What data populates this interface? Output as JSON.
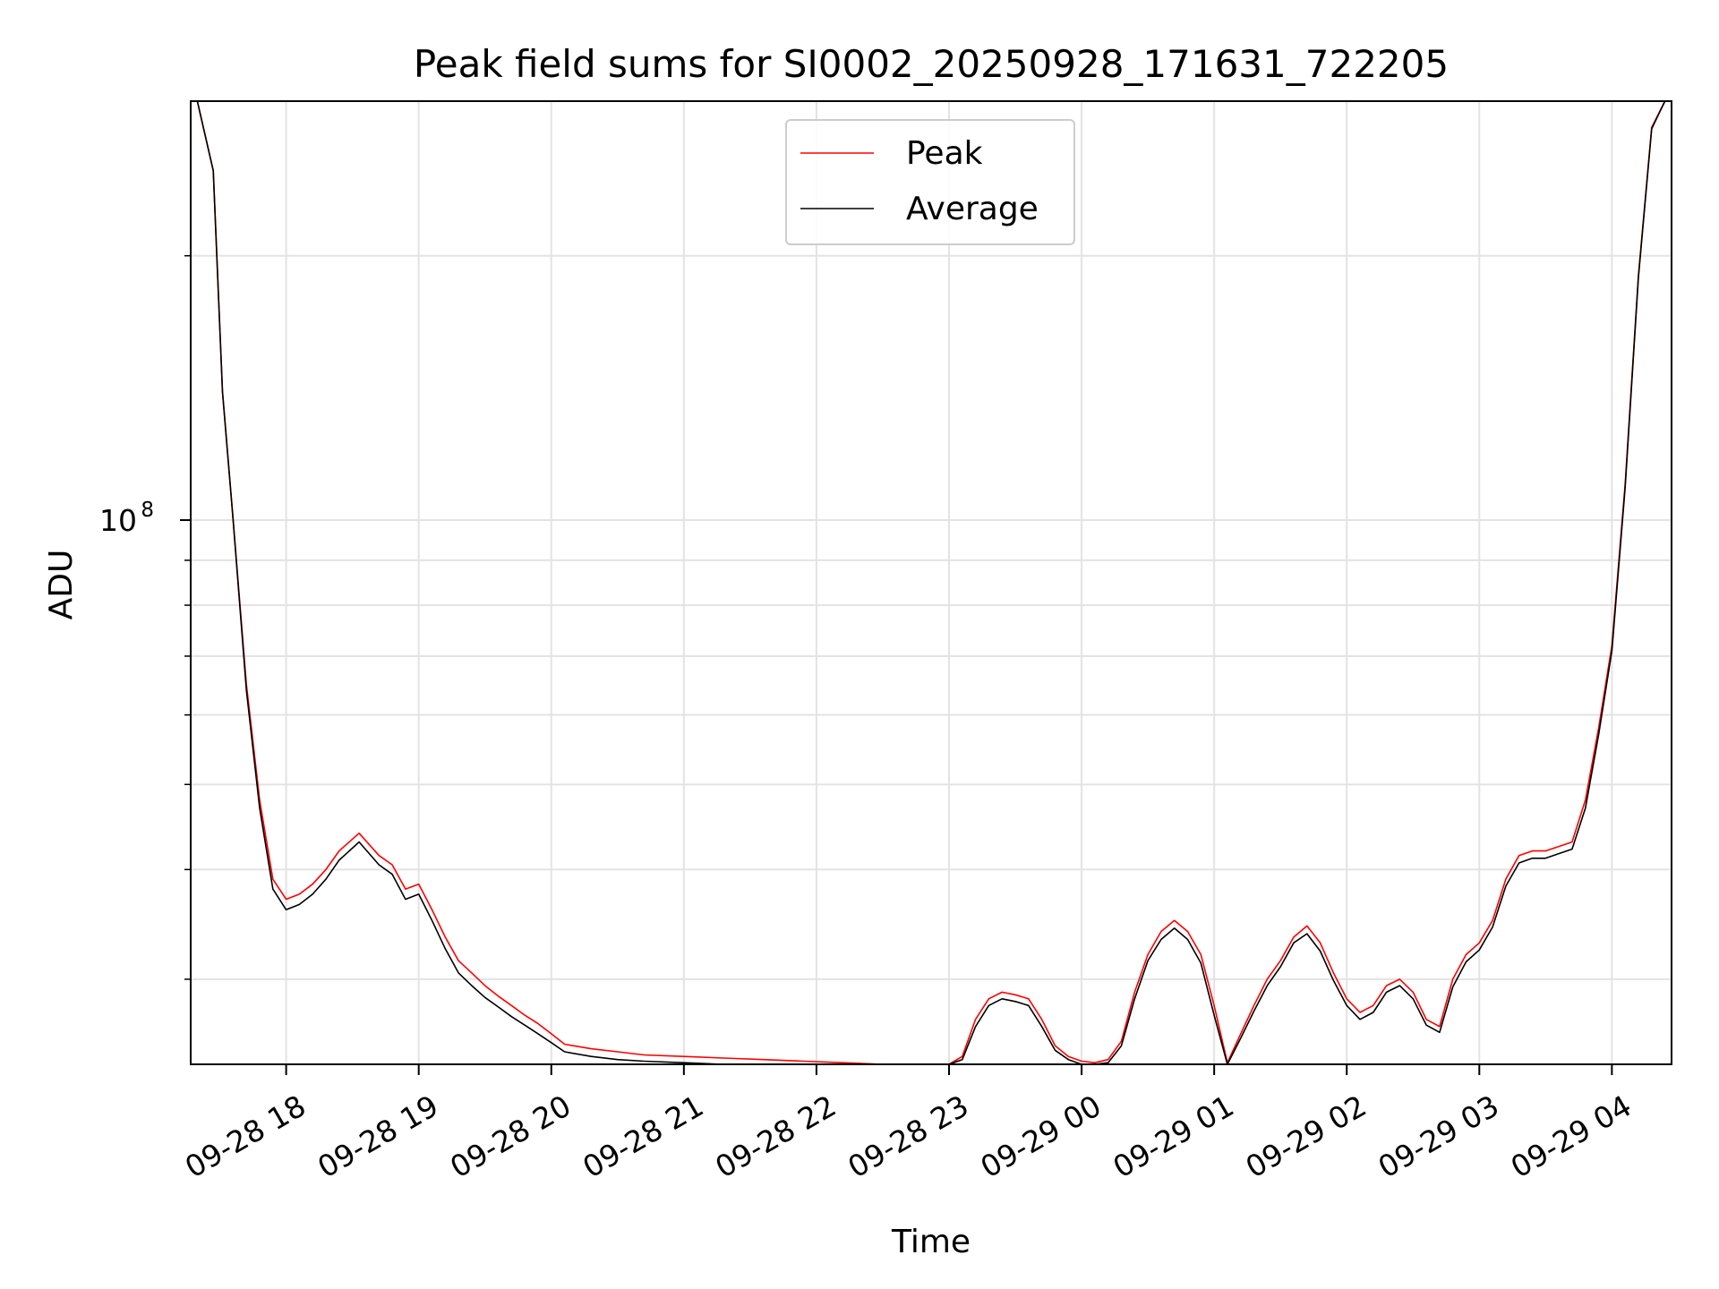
{
  "chart_data": {
    "type": "line",
    "title": "Peak field sums for SI0002_20250928_171631_722205",
    "xlabel": "Time",
    "ylabel": "ADU",
    "yscale": "log",
    "ylim": [
      24000000,
      300000000
    ],
    "y_major_tick": {
      "value": 100000000,
      "base": "10",
      "exponent": "8"
    },
    "y_minor_ticks": [
      30000000,
      40000000,
      50000000,
      60000000,
      70000000,
      80000000,
      90000000,
      200000000
    ],
    "xlim_hours": [
      17.28,
      28.45
    ],
    "x_tick_hours": [
      18,
      19,
      20,
      21,
      22,
      23,
      24,
      25,
      26,
      27,
      28
    ],
    "x_tick_labels": [
      "09-28 18",
      "09-28 19",
      "09-28 20",
      "09-28 21",
      "09-28 22",
      "09-28 23",
      "09-29 00",
      "09-29 01",
      "09-29 02",
      "09-29 03",
      "09-29 04"
    ],
    "grid": true,
    "legend_position": "upper-center",
    "series": [
      {
        "name": "Peak",
        "color": "#ff0000",
        "x_hours": [
          17.33,
          17.45,
          17.52,
          17.6,
          17.7,
          17.8,
          17.9,
          18.0,
          18.1,
          18.2,
          18.3,
          18.4,
          18.55,
          18.7,
          18.8,
          18.9,
          19.0,
          19.1,
          19.2,
          19.3,
          19.4,
          19.5,
          19.6,
          19.7,
          19.8,
          19.9,
          20.0,
          20.1,
          20.3,
          20.5,
          20.7,
          21.0,
          21.3,
          21.6,
          21.9,
          22.2,
          22.5,
          22.8,
          23.0,
          23.1,
          23.2,
          23.3,
          23.4,
          23.5,
          23.6,
          23.7,
          23.8,
          23.9,
          24.0,
          24.1,
          24.2,
          24.3,
          24.4,
          24.5,
          24.6,
          24.7,
          24.8,
          24.9,
          25.0,
          25.1,
          25.2,
          25.3,
          25.4,
          25.5,
          25.6,
          25.7,
          25.8,
          25.9,
          26.0,
          26.1,
          26.2,
          26.3,
          26.4,
          26.5,
          26.6,
          26.7,
          26.8,
          26.9,
          27.0,
          27.1,
          27.2,
          27.3,
          27.4,
          27.5,
          27.6,
          27.7,
          27.8,
          27.9,
          28.0,
          28.1,
          28.2,
          28.3,
          28.4,
          28.45
        ],
        "values": [
          300000000,
          250000000,
          140000000,
          100000000,
          65000000,
          48000000,
          39000000,
          37000000,
          37500000,
          38500000,
          40000000,
          42000000,
          44000000,
          41500000,
          40500000,
          38000000,
          38500000,
          36000000,
          33500000,
          31500000,
          30500000,
          29500000,
          28700000,
          28000000,
          27300000,
          26700000,
          26000000,
          25300000,
          25000000,
          24800000,
          24600000,
          24500000,
          24400000,
          24300000,
          24200000,
          24100000,
          24000000,
          23800000,
          23900000,
          24500000,
          27000000,
          28500000,
          29000000,
          28800000,
          28500000,
          27000000,
          25200000,
          24500000,
          24200000,
          24100000,
          24300000,
          25500000,
          29000000,
          32000000,
          34000000,
          35000000,
          34000000,
          32000000,
          28000000,
          24100000,
          26000000,
          28000000,
          30000000,
          31500000,
          33500000,
          34500000,
          33000000,
          30500000,
          28500000,
          27500000,
          28000000,
          29500000,
          30000000,
          29000000,
          27000000,
          26500000,
          30000000,
          32000000,
          33000000,
          35000000,
          39000000,
          41500000,
          42000000,
          42000000,
          42500000,
          43000000,
          48000000,
          58000000,
          72000000,
          110000000,
          190000000,
          280000000,
          300000000,
          300000000
        ]
      },
      {
        "name": "Average",
        "color": "#000000",
        "x_hours": [
          17.33,
          17.45,
          17.52,
          17.6,
          17.7,
          17.8,
          17.9,
          18.0,
          18.1,
          18.2,
          18.3,
          18.4,
          18.55,
          18.7,
          18.8,
          18.9,
          19.0,
          19.1,
          19.2,
          19.3,
          19.4,
          19.5,
          19.6,
          19.7,
          19.8,
          19.9,
          20.0,
          20.1,
          20.3,
          20.5,
          20.7,
          21.0,
          21.3,
          21.6,
          21.9,
          22.2,
          22.5,
          22.8,
          23.0,
          23.1,
          23.2,
          23.3,
          23.4,
          23.5,
          23.6,
          23.7,
          23.8,
          23.9,
          24.0,
          24.1,
          24.2,
          24.3,
          24.4,
          24.5,
          24.6,
          24.7,
          24.8,
          24.9,
          25.0,
          25.1,
          25.2,
          25.3,
          25.4,
          25.5,
          25.6,
          25.7,
          25.8,
          25.9,
          26.0,
          26.1,
          26.2,
          26.3,
          26.4,
          26.5,
          26.6,
          26.7,
          26.8,
          26.9,
          27.0,
          27.1,
          27.2,
          27.3,
          27.4,
          27.5,
          27.6,
          27.7,
          27.8,
          27.9,
          28.0,
          28.1,
          28.2,
          28.3,
          28.4,
          28.45
        ],
        "values": [
          300000000,
          250000000,
          140000000,
          100000000,
          64000000,
          47000000,
          38000000,
          36000000,
          36500000,
          37500000,
          39000000,
          41000000,
          43000000,
          40500000,
          39500000,
          37000000,
          37500000,
          35000000,
          32500000,
          30500000,
          29500000,
          28600000,
          27900000,
          27200000,
          26600000,
          26000000,
          25400000,
          24800000,
          24500000,
          24300000,
          24200000,
          24100000,
          24000000,
          23900000,
          23800000,
          23700000,
          23600000,
          23500000,
          23700000,
          24300000,
          26500000,
          28000000,
          28500000,
          28300000,
          28000000,
          26500000,
          24900000,
          24300000,
          24000000,
          23900000,
          24100000,
          25200000,
          28500000,
          31500000,
          33300000,
          34300000,
          33300000,
          31300000,
          27300000,
          23900000,
          25700000,
          27600000,
          29500000,
          31000000,
          33000000,
          33800000,
          32300000,
          29900000,
          28000000,
          27000000,
          27500000,
          29000000,
          29500000,
          28500000,
          26600000,
          26100000,
          29400000,
          31400000,
          32400000,
          34400000,
          38300000,
          40700000,
          41200000,
          41200000,
          41700000,
          42200000,
          47000000,
          57000000,
          71000000,
          109000000,
          189000000,
          279000000,
          300000000,
          300000000
        ]
      }
    ]
  }
}
